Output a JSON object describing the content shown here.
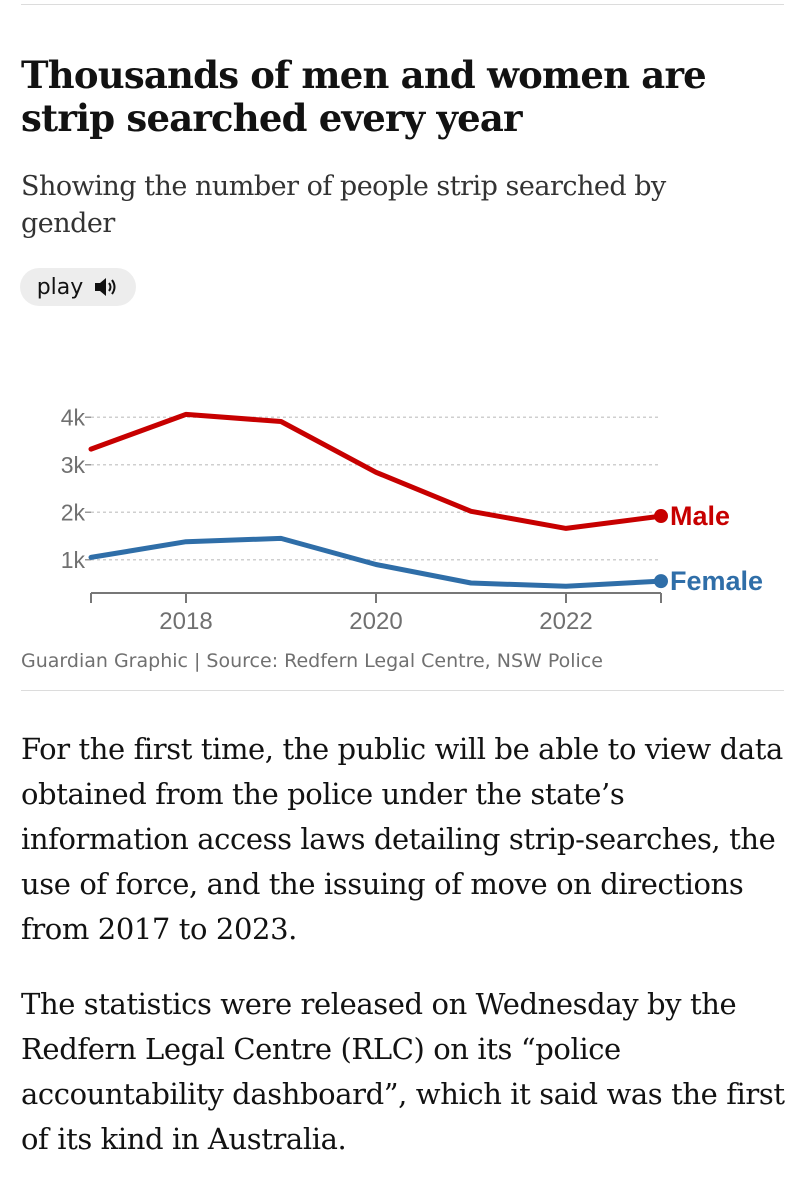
{
  "header": {
    "title": "Thousands of men and women are strip searched every year",
    "subtitle": "Showing the number of people strip searched by gender",
    "play_label": "play"
  },
  "chart_data": {
    "type": "line",
    "x": [
      2017,
      2018,
      2019,
      2020,
      2021,
      2022,
      2023
    ],
    "series": [
      {
        "name": "Male",
        "color": "#c70000",
        "values": [
          3330,
          4060,
          3910,
          2840,
          2020,
          1660,
          1920
        ]
      },
      {
        "name": "Female",
        "color": "#2f6ea8",
        "values": [
          1050,
          1380,
          1450,
          900,
          510,
          440,
          550
        ]
      }
    ],
    "xticks": [
      2018,
      2020,
      2022
    ],
    "xtick_labels": [
      "2018",
      "2020",
      "2022"
    ],
    "yticks": [
      1000,
      2000,
      3000,
      4000
    ],
    "ytick_labels": [
      "1k",
      "2k",
      "3k",
      "4k"
    ],
    "xlim": [
      2017,
      2023
    ],
    "ylim": [
      300,
      4300
    ],
    "grid": true,
    "legend": "inline labels at line ends",
    "title": "",
    "xlabel": "",
    "ylabel": ""
  },
  "footer": {
    "source": "Guardian Graphic | Source: Redfern Legal Centre, NSW Police"
  },
  "article": {
    "paragraph_1": "For the first time, the public will be able to view data obtained from the police under the state’s information access laws detailing strip-searches, the use of force, and the issuing of move on directions from 2017 to 2023.",
    "paragraph_2": "The statistics were released on Wednesday by the Redfern Legal Centre (RLC) on its “police accountability dashboard”, which it said was the first of its kind in Australia."
  },
  "icons": {
    "play": "speaker-icon"
  }
}
